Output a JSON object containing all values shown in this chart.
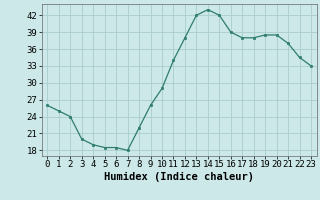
{
  "x": [
    0,
    1,
    2,
    3,
    4,
    5,
    6,
    7,
    8,
    9,
    10,
    11,
    12,
    13,
    14,
    15,
    16,
    17,
    18,
    19,
    20,
    21,
    22,
    23
  ],
  "y": [
    26,
    25,
    24,
    20,
    19,
    18.5,
    18.5,
    18,
    22,
    26,
    29,
    34,
    38,
    42,
    43,
    42,
    39,
    38,
    38,
    38.5,
    38.5,
    37,
    34.5,
    33
  ],
  "line_color": "#2e7d6e",
  "marker_color": "#2e7d6e",
  "bg_color": "#cce8e8",
  "grid_color": "#aacccc",
  "xlabel": "Humidex (Indice chaleur)",
  "xlabel_fontsize": 7.5,
  "yticks": [
    18,
    21,
    24,
    27,
    30,
    33,
    36,
    39,
    42
  ],
  "xticks": [
    0,
    1,
    2,
    3,
    4,
    5,
    6,
    7,
    8,
    9,
    10,
    11,
    12,
    13,
    14,
    15,
    16,
    17,
    18,
    19,
    20,
    21,
    22,
    23
  ],
  "ylim": [
    17,
    44
  ],
  "xlim": [
    -0.5,
    23.5
  ],
  "tick_fontsize": 6.5
}
